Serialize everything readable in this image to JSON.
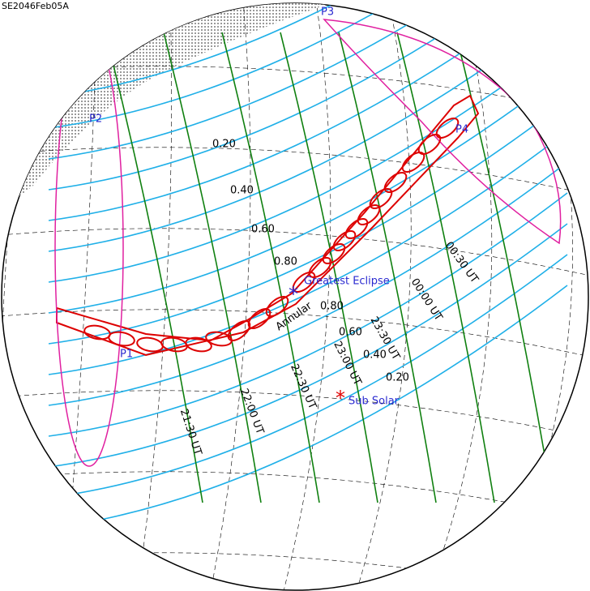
{
  "title": "SE2046Feb05A",
  "contact_points": [
    "P1",
    "P2",
    "P3",
    "P4"
  ],
  "magnitude_labels_north": [
    "0.20",
    "0.40",
    "0.60",
    "0.80"
  ],
  "magnitude_labels_south": [
    "0.80",
    "0.60",
    "0.40",
    "0.20"
  ],
  "greatest_eclipse": "Greatest Eclipse",
  "eclipse_type": "Annular",
  "time_labels": [
    "21:30 UT",
    "22:00 UT",
    "22:30 UT",
    "23:00 UT",
    "23:30 UT",
    "00:00 UT",
    "00:30 UT"
  ],
  "sub_solar": "Sub Solar"
}
